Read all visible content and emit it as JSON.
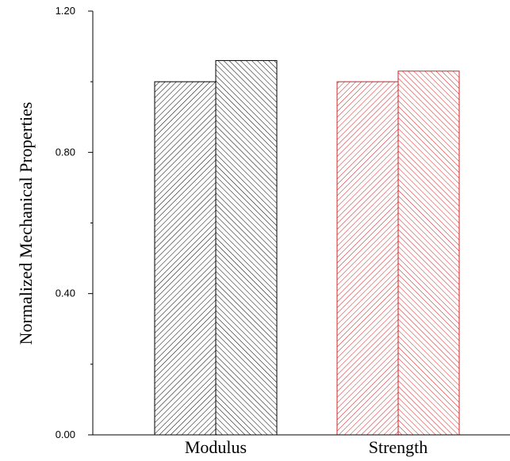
{
  "chart_data": {
    "type": "bar",
    "title": "",
    "xlabel": "",
    "ylabel": "Normalized Mechanical Properties",
    "ylim": [
      0,
      1.2
    ],
    "yticks": [
      0.0,
      0.4,
      0.8,
      1.2
    ],
    "ytick_labels": [
      "0.00",
      "0.40",
      "0.80",
      "1.20"
    ],
    "minor_yticks": [
      0.2,
      0.6,
      1.0
    ],
    "categories": [
      "Modulus",
      "Strength"
    ],
    "bars": [
      {
        "category": "Modulus",
        "index": 0,
        "value": 1.0,
        "color": "#000000",
        "hatch": "forward"
      },
      {
        "category": "Modulus",
        "index": 1,
        "value": 1.06,
        "color": "#000000",
        "hatch": "backward"
      },
      {
        "category": "Strength",
        "index": 0,
        "value": 1.0,
        "color": "#d42020",
        "hatch": "forward"
      },
      {
        "category": "Strength",
        "index": 1,
        "value": 1.03,
        "color": "#d42020",
        "hatch": "backward"
      }
    ],
    "grid": false,
    "legend": "none"
  }
}
